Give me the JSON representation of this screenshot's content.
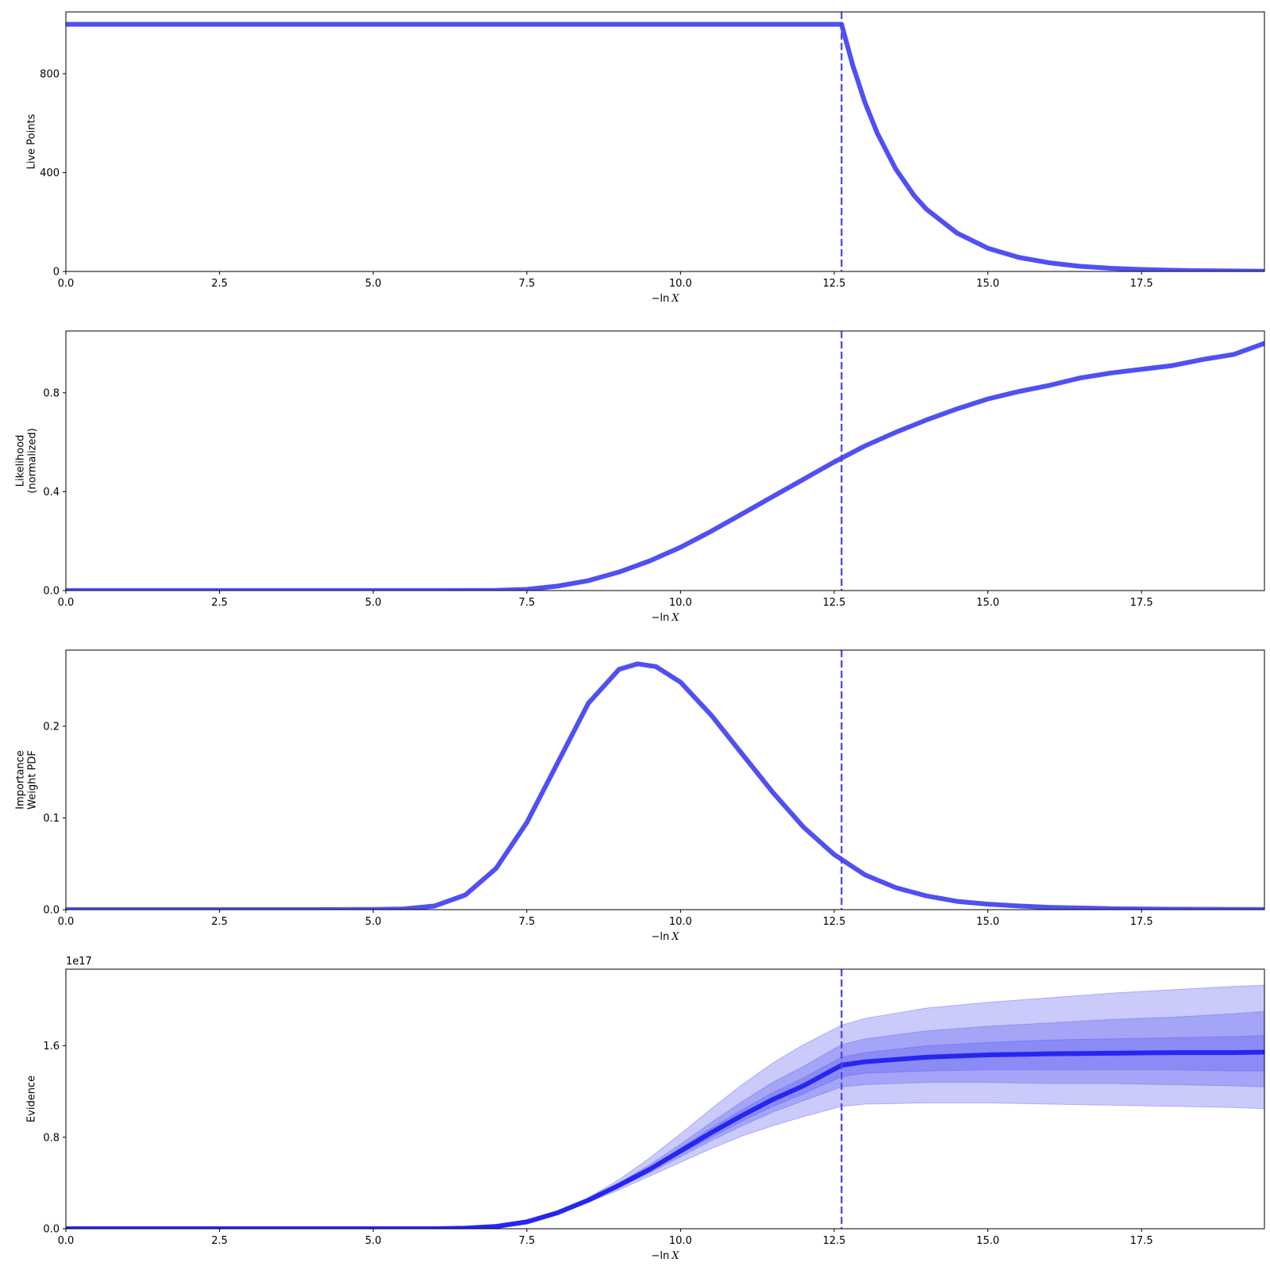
{
  "chart_data": [
    {
      "type": "line",
      "ylabel_lines": [
        "Live Points"
      ],
      "xlabel": {
        "prefix": "−ln",
        "var": "X"
      },
      "xlim": [
        0,
        19.5
      ],
      "ylim": [
        0,
        1050
      ],
      "xticks": [
        {
          "value": 0,
          "label": "0.0"
        },
        {
          "value": 2.5,
          "label": "2.5"
        },
        {
          "value": 5,
          "label": "5.0"
        },
        {
          "value": 7.5,
          "label": "7.5"
        },
        {
          "value": 10,
          "label": "10.0"
        },
        {
          "value": 12.5,
          "label": "12.5"
        },
        {
          "value": 15,
          "label": "15.0"
        },
        {
          "value": 17.5,
          "label": "17.5"
        }
      ],
      "yticks": [
        {
          "value": 0,
          "label": "0"
        },
        {
          "value": 400,
          "label": "400"
        },
        {
          "value": 800,
          "label": "800"
        }
      ],
      "vline_x": 12.62,
      "color": "#5050f2",
      "series": [
        {
          "x": [
            0,
            2,
            4,
            6,
            8,
            10,
            12,
            12.62,
            12.8,
            13.0,
            13.2,
            13.5,
            13.8,
            14.0,
            14.5,
            15.0,
            15.5,
            16.0,
            16.5,
            17.0,
            17.5,
            18.0,
            18.5,
            19.0,
            19.5
          ],
          "y": [
            1000,
            1000,
            1000,
            1000,
            1000,
            1000,
            1000,
            1000,
            836,
            684,
            560,
            415,
            307,
            252,
            155,
            94,
            57,
            35,
            21,
            13,
            8,
            5,
            3,
            2,
            1
          ]
        }
      ]
    },
    {
      "type": "line",
      "ylabel_lines": [
        "Likelihood",
        "(normalized)"
      ],
      "xlabel": {
        "prefix": "−ln",
        "var": "X"
      },
      "xlim": [
        0,
        19.5
      ],
      "ylim": [
        0,
        1.05
      ],
      "xticks": [
        {
          "value": 0,
          "label": "0.0"
        },
        {
          "value": 2.5,
          "label": "2.5"
        },
        {
          "value": 5,
          "label": "5.0"
        },
        {
          "value": 7.5,
          "label": "7.5"
        },
        {
          "value": 10,
          "label": "10.0"
        },
        {
          "value": 12.5,
          "label": "12.5"
        },
        {
          "value": 15,
          "label": "15.0"
        },
        {
          "value": 17.5,
          "label": "17.5"
        }
      ],
      "yticks": [
        {
          "value": 0,
          "label": "0.0"
        },
        {
          "value": 0.4,
          "label": "0.4"
        },
        {
          "value": 0.8,
          "label": "0.8"
        }
      ],
      "vline_x": 12.62,
      "color": "#5050f2",
      "series": [
        {
          "x": [
            0,
            2,
            4,
            6,
            7,
            7.5,
            8.0,
            8.5,
            9.0,
            9.5,
            10.0,
            10.5,
            11.0,
            11.5,
            12.0,
            12.5,
            13.0,
            13.5,
            14.0,
            14.5,
            15.0,
            15.5,
            16.0,
            16.5,
            17.0,
            17.5,
            18.0,
            18.5,
            19.0,
            19.5
          ],
          "y": [
            0,
            0,
            0,
            0,
            0.001,
            0.005,
            0.018,
            0.04,
            0.075,
            0.12,
            0.175,
            0.24,
            0.31,
            0.38,
            0.45,
            0.52,
            0.585,
            0.64,
            0.69,
            0.735,
            0.775,
            0.805,
            0.83,
            0.86,
            0.88,
            0.895,
            0.91,
            0.935,
            0.955,
            1.0
          ]
        }
      ]
    },
    {
      "type": "line",
      "ylabel_lines": [
        "Importance",
        "Weight PDF"
      ],
      "xlabel": {
        "prefix": "−ln",
        "var": "X"
      },
      "xlim": [
        0,
        19.5
      ],
      "ylim": [
        0,
        0.283
      ],
      "xticks": [
        {
          "value": 0,
          "label": "0.0"
        },
        {
          "value": 2.5,
          "label": "2.5"
        },
        {
          "value": 5,
          "label": "5.0"
        },
        {
          "value": 7.5,
          "label": "7.5"
        },
        {
          "value": 10,
          "label": "10.0"
        },
        {
          "value": 12.5,
          "label": "12.5"
        },
        {
          "value": 15,
          "label": "15.0"
        },
        {
          "value": 17.5,
          "label": "17.5"
        }
      ],
      "yticks": [
        {
          "value": 0,
          "label": "0.0"
        },
        {
          "value": 0.1,
          "label": "0.1"
        },
        {
          "value": 0.2,
          "label": "0.2"
        }
      ],
      "vline_x": 12.62,
      "color": "#5050f2",
      "series": [
        {
          "x": [
            0,
            2,
            4,
            5,
            5.5,
            6.0,
            6.5,
            7.0,
            7.5,
            8.0,
            8.5,
            9.0,
            9.3,
            9.6,
            10.0,
            10.5,
            11.0,
            11.5,
            12.0,
            12.5,
            13.0,
            13.5,
            14.0,
            14.5,
            15.0,
            15.5,
            16.0,
            17.0,
            18.0,
            19.5
          ],
          "y": [
            0,
            0,
            0,
            0.0002,
            0.0008,
            0.004,
            0.016,
            0.045,
            0.095,
            0.16,
            0.225,
            0.262,
            0.268,
            0.265,
            0.248,
            0.212,
            0.17,
            0.128,
            0.09,
            0.06,
            0.038,
            0.024,
            0.015,
            0.009,
            0.006,
            0.004,
            0.0025,
            0.001,
            0.0004,
            0.0001
          ]
        }
      ]
    },
    {
      "type": "area",
      "ylabel_lines": [
        "Evidence"
      ],
      "xlabel": {
        "prefix": "−ln",
        "var": "X"
      },
      "xlim": [
        0,
        19.5
      ],
      "ylim": [
        0,
        2.27
      ],
      "offset_text": "1e17",
      "xticks": [
        {
          "value": 0,
          "label": "0.0"
        },
        {
          "value": 2.5,
          "label": "2.5"
        },
        {
          "value": 5,
          "label": "5.0"
        },
        {
          "value": 7.5,
          "label": "7.5"
        },
        {
          "value": 10,
          "label": "10.0"
        },
        {
          "value": 12.5,
          "label": "12.5"
        },
        {
          "value": 15,
          "label": "15.0"
        },
        {
          "value": 17.5,
          "label": "17.5"
        }
      ],
      "yticks": [
        {
          "value": 0,
          "label": "0.0"
        },
        {
          "value": 0.8,
          "label": "0.8"
        },
        {
          "value": 1.6,
          "label": "1.6"
        }
      ],
      "vline_x": 12.62,
      "color": "#2626f2",
      "band_color": "#5050f2",
      "x": [
        0,
        2,
        4,
        6,
        6.5,
        7.0,
        7.5,
        8.0,
        8.5,
        9.0,
        9.5,
        10.0,
        10.5,
        11.0,
        11.5,
        12.0,
        12.62,
        13.0,
        14.0,
        15.0,
        16.0,
        17.0,
        18.0,
        19.0,
        19.5
      ],
      "median": [
        0,
        0,
        0,
        0,
        0.005,
        0.02,
        0.06,
        0.14,
        0.25,
        0.38,
        0.52,
        0.68,
        0.84,
        0.99,
        1.13,
        1.25,
        1.43,
        1.46,
        1.5,
        1.52,
        1.53,
        1.535,
        1.54,
        1.54,
        1.545
      ],
      "bands": [
        {
          "lower": [
            0,
            0,
            0,
            0,
            0.005,
            0.02,
            0.06,
            0.14,
            0.23,
            0.34,
            0.46,
            0.58,
            0.7,
            0.81,
            0.9,
            0.98,
            1.07,
            1.09,
            1.1,
            1.1,
            1.09,
            1.08,
            1.07,
            1.06,
            1.05
          ],
          "upper": [
            0,
            0,
            0,
            0,
            0.005,
            0.02,
            0.06,
            0.14,
            0.27,
            0.43,
            0.62,
            0.83,
            1.05,
            1.26,
            1.45,
            1.61,
            1.78,
            1.84,
            1.93,
            1.98,
            2.02,
            2.06,
            2.09,
            2.12,
            2.13
          ]
        },
        {
          "lower": [
            0,
            0,
            0,
            0,
            0.005,
            0.02,
            0.06,
            0.14,
            0.24,
            0.36,
            0.49,
            0.63,
            0.77,
            0.9,
            1.02,
            1.12,
            1.24,
            1.26,
            1.28,
            1.28,
            1.27,
            1.27,
            1.26,
            1.25,
            1.24
          ],
          "upper": [
            0,
            0,
            0,
            0,
            0.005,
            0.02,
            0.06,
            0.14,
            0.26,
            0.4,
            0.56,
            0.74,
            0.93,
            1.11,
            1.28,
            1.42,
            1.61,
            1.66,
            1.73,
            1.77,
            1.8,
            1.83,
            1.85,
            1.88,
            1.9
          ]
        },
        {
          "lower": [
            0,
            0,
            0,
            0,
            0.005,
            0.02,
            0.06,
            0.14,
            0.245,
            0.37,
            0.505,
            0.655,
            0.8,
            0.94,
            1.07,
            1.18,
            1.33,
            1.36,
            1.38,
            1.39,
            1.39,
            1.39,
            1.39,
            1.38,
            1.38
          ],
          "upper": [
            0,
            0,
            0,
            0,
            0.005,
            0.02,
            0.06,
            0.14,
            0.255,
            0.39,
            0.535,
            0.705,
            0.88,
            1.04,
            1.19,
            1.32,
            1.5,
            1.54,
            1.6,
            1.63,
            1.65,
            1.66,
            1.67,
            1.68,
            1.69
          ]
        }
      ]
    }
  ]
}
